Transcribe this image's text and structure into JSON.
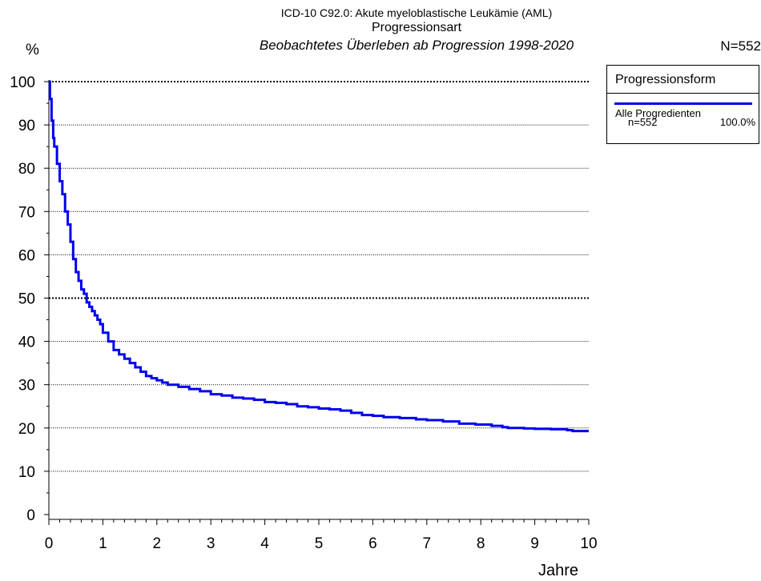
{
  "titles": {
    "line1": "ICD-10 C92.0: Akute myeloblastische Leukämie (AML)",
    "line2": "Progressionsart",
    "line3": "Beobachtetes Überleben ab Progression 1998-2020"
  },
  "total_n": "N=552",
  "legend": {
    "title": "Progressionsform",
    "entry_label": "Alle Progredienten",
    "entry_n": "n=552",
    "entry_pct": "100.0%"
  },
  "colors": {
    "curve": "#0000ee",
    "grid": "#000000"
  },
  "chart_data": {
    "type": "line",
    "title": "ICD-10 C92.0: Akute myeloblastische Leukämie (AML)",
    "subtitle": "Progressionsart – Beobachtetes Überleben ab Progression 1998-2020",
    "xlabel": "Jahre",
    "ylabel": "%",
    "xlim": [
      0,
      10
    ],
    "ylim": [
      0,
      100
    ],
    "x_ticks": [
      "0",
      "1",
      "2",
      "3",
      "4",
      "5",
      "6",
      "7",
      "8",
      "9",
      "10"
    ],
    "y_ticks": [
      "0",
      "10",
      "20",
      "30",
      "40",
      "50",
      "60",
      "70",
      "80",
      "90",
      "100"
    ],
    "grid": "horizontal dotted at every 10%",
    "legend_position": "right",
    "series": [
      {
        "name": "Alle Progredienten",
        "step": true,
        "x": [
          0,
          0.02,
          0.05,
          0.08,
          0.1,
          0.15,
          0.2,
          0.25,
          0.3,
          0.35,
          0.4,
          0.45,
          0.5,
          0.55,
          0.6,
          0.65,
          0.7,
          0.75,
          0.8,
          0.85,
          0.9,
          0.95,
          1.0,
          1.1,
          1.2,
          1.3,
          1.4,
          1.5,
          1.6,
          1.7,
          1.8,
          1.9,
          2.0,
          2.1,
          2.2,
          2.4,
          2.6,
          2.8,
          3.0,
          3.2,
          3.4,
          3.6,
          3.8,
          4.0,
          4.2,
          4.4,
          4.6,
          4.8,
          5.0,
          5.2,
          5.4,
          5.6,
          5.8,
          6.0,
          6.2,
          6.5,
          6.8,
          7.0,
          7.3,
          7.6,
          7.9,
          8.2,
          8.4,
          8.5,
          8.8,
          9.0,
          9.3,
          9.6,
          9.7,
          10.0
        ],
        "y": [
          100,
          96,
          91,
          87,
          85,
          81,
          77,
          74,
          70,
          67,
          63,
          59,
          56,
          54,
          52,
          51,
          49,
          48,
          47,
          46,
          45,
          44,
          42,
          40,
          38,
          37,
          36,
          35,
          34,
          33,
          32,
          31.5,
          31,
          30.5,
          30,
          29.5,
          29,
          28.5,
          27.8,
          27.5,
          27,
          26.8,
          26.5,
          26,
          25.8,
          25.5,
          25,
          24.8,
          24.5,
          24.3,
          24,
          23.5,
          23,
          22.8,
          22.5,
          22.3,
          22,
          21.8,
          21.5,
          21,
          20.8,
          20.5,
          20.2,
          20,
          19.9,
          19.8,
          19.7,
          19.5,
          19.3,
          19.3
        ]
      }
    ]
  }
}
